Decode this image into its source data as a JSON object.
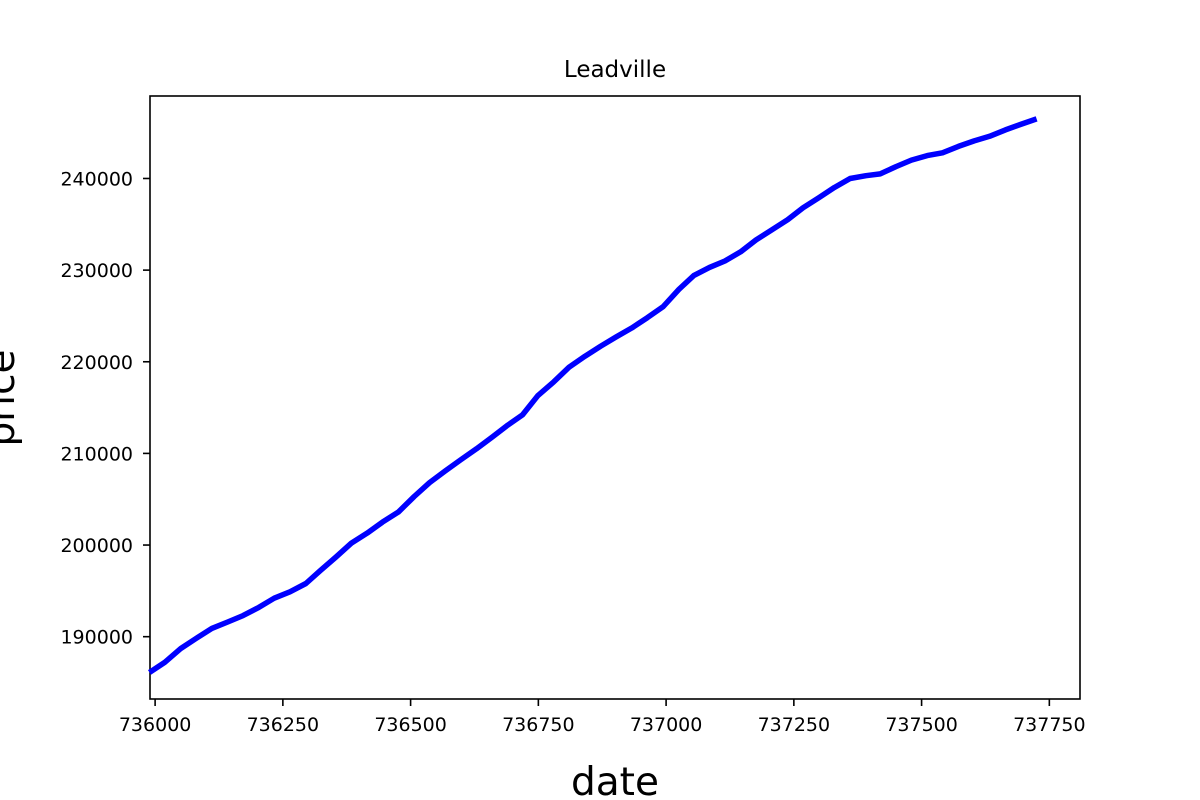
{
  "chart_data": {
    "type": "line",
    "title": "Leadville",
    "xlabel": "date",
    "ylabel": "price",
    "xlim": [
      735990,
      737810
    ],
    "ylim": [
      183200,
      249000
    ],
    "x_ticks": [
      736000,
      736250,
      736500,
      736750,
      737000,
      737250,
      737500,
      737750
    ],
    "y_ticks": [
      190000,
      200000,
      210000,
      220000,
      230000,
      240000
    ],
    "x_tick_labels": [
      "736000",
      "736250",
      "736500",
      "736750",
      "737000",
      "737250",
      "737500",
      "737750"
    ],
    "y_tick_labels": [
      "190000",
      "200000",
      "210000",
      "220000",
      "230000",
      "240000"
    ],
    "grid": false,
    "series": [
      {
        "color": "#0000ff",
        "x": [
          735989,
          736019,
          736050,
          736080,
          736111,
          736142,
          736172,
          736203,
          736233,
          736264,
          736295,
          736323,
          736354,
          736384,
          736415,
          736445,
          736476,
          736507,
          736537,
          736568,
          736598,
          736629,
          736660,
          736688,
          736719,
          736749,
          736780,
          736810,
          736841,
          736872,
          736902,
          736933,
          736963,
          736994,
          737025,
          737054,
          737085,
          737115,
          737146,
          737176,
          737207,
          737238,
          737268,
          737299,
          737329,
          737360,
          737391,
          737419,
          737450,
          737480,
          737511,
          737541,
          737572,
          737603,
          737633,
          737664,
          737694,
          737725
        ],
        "values": [
          186100,
          187200,
          188700,
          189800,
          190900,
          191600,
          192300,
          193200,
          194200,
          194900,
          195800,
          197200,
          198700,
          200200,
          201300,
          202500,
          203600,
          205300,
          206800,
          208100,
          209300,
          210500,
          211800,
          213000,
          214200,
          216300,
          217800,
          219400,
          220600,
          221700,
          222700,
          223700,
          224800,
          226000,
          227900,
          229400,
          230300,
          231000,
          232000,
          233300,
          234400,
          235500,
          236800,
          237900,
          239000,
          240000,
          240300,
          240500,
          241300,
          242000,
          242500,
          242800,
          243500,
          244100,
          244600,
          245300,
          245900,
          246500
        ]
      }
    ]
  }
}
